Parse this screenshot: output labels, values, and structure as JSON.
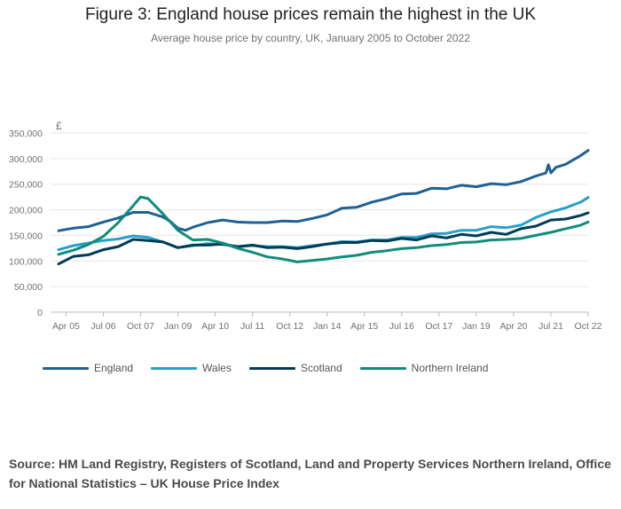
{
  "title": "Figure 3: England house prices remain the highest in the UK",
  "subtitle": "Average house price by country, UK, January 2005 to October 2022",
  "source": "Source: HM Land Registry, Registers of Scotland, Land and Property Services Northern Ireland, Office for National Statistics – UK House Price Index",
  "chart_data": {
    "type": "line",
    "title": "Figure 3: England house prices remain the highest in the UK",
    "subtitle": "Average house price by country, UK, January 2005 to October 2022",
    "xlabel": "",
    "ylabel": "£",
    "ylim": [
      0,
      350000
    ],
    "y_ticks": [
      0,
      50000,
      100000,
      150000,
      200000,
      250000,
      300000,
      350000
    ],
    "y_tick_labels": [
      "0",
      "50,000",
      "100,000",
      "150,000",
      "200,000",
      "250,000",
      "300,000",
      "350,000"
    ],
    "x_range": [
      "Jan 2005",
      "Oct 2022"
    ],
    "x_tick_labels": [
      "Apr 05",
      "Jul 06",
      "Oct 07",
      "Jan 09",
      "Apr 10",
      "Jul 11",
      "Oct 12",
      "Jan 14",
      "Apr 15",
      "Jul 16",
      "Oct 17",
      "Jan 19",
      "Apr 20",
      "Jul 21",
      "Oct 22"
    ],
    "grid": "horizontal",
    "legend_position": "bottom",
    "series": [
      {
        "name": "England",
        "color": "#206095",
        "points": [
          [
            "Jan 2005",
            159000
          ],
          [
            "Jul 2005",
            164000
          ],
          [
            "Jan 2006",
            167000
          ],
          [
            "Jul 2006",
            176000
          ],
          [
            "Jan 2007",
            184000
          ],
          [
            "Jul 2007",
            195000
          ],
          [
            "Jan 2008",
            195000
          ],
          [
            "Jul 2008",
            186000
          ],
          [
            "Oct 2008",
            177000
          ],
          [
            "Jan 2009",
            164000
          ],
          [
            "Apr 2009",
            160000
          ],
          [
            "Jul 2009",
            166000
          ],
          [
            "Jan 2010",
            175000
          ],
          [
            "Jul 2010",
            180000
          ],
          [
            "Jan 2011",
            176000
          ],
          [
            "Jul 2011",
            175000
          ],
          [
            "Jan 2012",
            175000
          ],
          [
            "Jul 2012",
            178000
          ],
          [
            "Jan 2013",
            177000
          ],
          [
            "Jul 2013",
            183000
          ],
          [
            "Jan 2014",
            190000
          ],
          [
            "Jul 2014",
            203000
          ],
          [
            "Jan 2015",
            205000
          ],
          [
            "Jul 2015",
            215000
          ],
          [
            "Jan 2016",
            222000
          ],
          [
            "Jul 2016",
            231000
          ],
          [
            "Jan 2017",
            232000
          ],
          [
            "Jul 2017",
            242000
          ],
          [
            "Jan 2018",
            241000
          ],
          [
            "Jul 2018",
            248000
          ],
          [
            "Jan 2019",
            245000
          ],
          [
            "Jul 2019",
            251000
          ],
          [
            "Jan 2020",
            249000
          ],
          [
            "Jul 2020",
            255000
          ],
          [
            "Jan 2021",
            266000
          ],
          [
            "May 2021",
            272000
          ],
          [
            "Jun 2021",
            288000
          ],
          [
            "Jul 2021",
            272000
          ],
          [
            "Sep 2021",
            283000
          ],
          [
            "Jan 2022",
            289000
          ],
          [
            "Jul 2022",
            306000
          ],
          [
            "Oct 2022",
            316000
          ]
        ]
      },
      {
        "name": "Wales",
        "color": "#27A0CC",
        "points": [
          [
            "Jan 2005",
            122000
          ],
          [
            "Jul 2005",
            130000
          ],
          [
            "Jan 2006",
            135000
          ],
          [
            "Jul 2006",
            140000
          ],
          [
            "Jan 2007",
            143000
          ],
          [
            "Jul 2007",
            149000
          ],
          [
            "Jan 2008",
            146000
          ],
          [
            "Jul 2008",
            137000
          ],
          [
            "Jan 2009",
            126000
          ],
          [
            "Jul 2009",
            130000
          ],
          [
            "Jan 2010",
            134000
          ],
          [
            "Jul 2010",
            132000
          ],
          [
            "Jan 2011",
            128000
          ],
          [
            "Jul 2011",
            130000
          ],
          [
            "Jan 2012",
            128000
          ],
          [
            "Jul 2012",
            128000
          ],
          [
            "Jan 2013",
            126000
          ],
          [
            "Jul 2013",
            130000
          ],
          [
            "Jan 2014",
            133000
          ],
          [
            "Jul 2014",
            138000
          ],
          [
            "Jan 2015",
            137000
          ],
          [
            "Jul 2015",
            141000
          ],
          [
            "Jan 2016",
            141000
          ],
          [
            "Jul 2016",
            146000
          ],
          [
            "Jan 2017",
            146000
          ],
          [
            "Jul 2017",
            153000
          ],
          [
            "Jan 2018",
            154000
          ],
          [
            "Jul 2018",
            160000
          ],
          [
            "Jan 2019",
            160000
          ],
          [
            "Jul 2019",
            167000
          ],
          [
            "Jan 2020",
            165000
          ],
          [
            "Jul 2020",
            170000
          ],
          [
            "Jan 2021",
            185000
          ],
          [
            "Jul 2021",
            196000
          ],
          [
            "Jan 2022",
            204000
          ],
          [
            "Jul 2022",
            215000
          ],
          [
            "Oct 2022",
            224000
          ]
        ]
      },
      {
        "name": "Scotland",
        "color": "#003C57",
        "points": [
          [
            "Jan 2005",
            94000
          ],
          [
            "Jul 2005",
            109000
          ],
          [
            "Jan 2006",
            112000
          ],
          [
            "Jul 2006",
            122000
          ],
          [
            "Jan 2007",
            128000
          ],
          [
            "Jul 2007",
            142000
          ],
          [
            "Jan 2008",
            140000
          ],
          [
            "Jul 2008",
            137000
          ],
          [
            "Jan 2009",
            126000
          ],
          [
            "Jul 2009",
            131000
          ],
          [
            "Jan 2010",
            131000
          ],
          [
            "Jul 2010",
            133000
          ],
          [
            "Jan 2011",
            128000
          ],
          [
            "Jul 2011",
            131000
          ],
          [
            "Jan 2012",
            126000
          ],
          [
            "Jul 2012",
            127000
          ],
          [
            "Jan 2013",
            124000
          ],
          [
            "Jul 2013",
            128000
          ],
          [
            "Jan 2014",
            133000
          ],
          [
            "Jul 2014",
            136000
          ],
          [
            "Jan 2015",
            136000
          ],
          [
            "Jul 2015",
            140000
          ],
          [
            "Jan 2016",
            139000
          ],
          [
            "Jul 2016",
            144000
          ],
          [
            "Jan 2017",
            141000
          ],
          [
            "Jul 2017",
            149000
          ],
          [
            "Jan 2018",
            145000
          ],
          [
            "Jul 2018",
            152000
          ],
          [
            "Jan 2019",
            149000
          ],
          [
            "Jul 2019",
            156000
          ],
          [
            "Jan 2020",
            152000
          ],
          [
            "Jul 2020",
            163000
          ],
          [
            "Jan 2021",
            168000
          ],
          [
            "Jul 2021",
            180000
          ],
          [
            "Jan 2022",
            182000
          ],
          [
            "Jul 2022",
            189000
          ],
          [
            "Oct 2022",
            194000
          ]
        ]
      },
      {
        "name": "Northern Ireland",
        "color": "#118C7B",
        "points": [
          [
            "Jan 2005",
            113000
          ],
          [
            "Jul 2005",
            121000
          ],
          [
            "Jan 2006",
            132000
          ],
          [
            "Jul 2006",
            148000
          ],
          [
            "Jan 2007",
            175000
          ],
          [
            "Jul 2007",
            208000
          ],
          [
            "Oct 2007",
            225000
          ],
          [
            "Jan 2008",
            222000
          ],
          [
            "Jul 2008",
            192000
          ],
          [
            "Jan 2009",
            160000
          ],
          [
            "Jul 2009",
            141000
          ],
          [
            "Jan 2010",
            142000
          ],
          [
            "Jul 2010",
            135000
          ],
          [
            "Jan 2011",
            125000
          ],
          [
            "Jul 2011",
            117000
          ],
          [
            "Jan 2012",
            108000
          ],
          [
            "Jul 2012",
            104000
          ],
          [
            "Jan 2013",
            98000
          ],
          [
            "Jul 2013",
            101000
          ],
          [
            "Jan 2014",
            104000
          ],
          [
            "Jul 2014",
            108000
          ],
          [
            "Jan 2015",
            111000
          ],
          [
            "Jul 2015",
            117000
          ],
          [
            "Jan 2016",
            120000
          ],
          [
            "Jul 2016",
            124000
          ],
          [
            "Jan 2017",
            126000
          ],
          [
            "Jul 2017",
            130000
          ],
          [
            "Jan 2018",
            132000
          ],
          [
            "Jul 2018",
            136000
          ],
          [
            "Jan 2019",
            137000
          ],
          [
            "Jul 2019",
            141000
          ],
          [
            "Jan 2020",
            142000
          ],
          [
            "Jul 2020",
            144000
          ],
          [
            "Jan 2021",
            150000
          ],
          [
            "Jul 2021",
            156000
          ],
          [
            "Jan 2022",
            163000
          ],
          [
            "Jul 2022",
            170000
          ],
          [
            "Oct 2022",
            176000
          ]
        ]
      }
    ]
  }
}
